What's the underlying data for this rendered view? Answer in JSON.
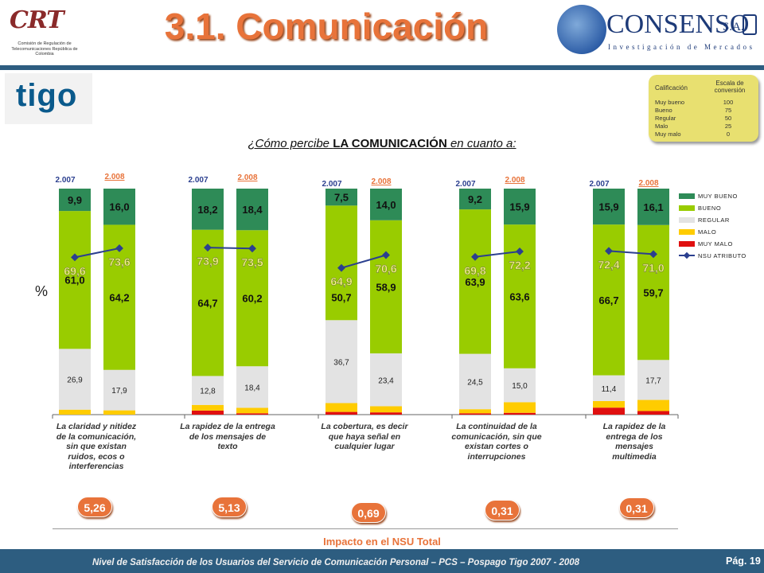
{
  "header": {
    "title": "3.1. Comunicación",
    "crt_logo": {
      "word": "CRT",
      "subtitle": "Comisión de Regulación de Telecomunicaciones República de Colombia"
    },
    "consenso_logo": {
      "word": "CONSENSO",
      "suffix": "S.A.",
      "subtitle": "Investigación de Mercados"
    },
    "brand_logo": "tigo"
  },
  "scale": {
    "col1": "Calificación",
    "col2": "Escala de conversión",
    "rows": [
      {
        "label": "Muy bueno",
        "value": "100"
      },
      {
        "label": "Bueno",
        "value": "75"
      },
      {
        "label": "Regular",
        "value": "50"
      },
      {
        "label": "Malo",
        "value": "25"
      },
      {
        "label": "Muy malo",
        "value": "0"
      }
    ]
  },
  "question": {
    "pre": "¿Cómo percibe ",
    "bold": "LA COMUNICACIÓN",
    "post": " en cuanto a:"
  },
  "y_unit": "%",
  "chart_data": {
    "type": "bar",
    "stacked": true,
    "ylim": [
      0,
      100
    ],
    "legend_position": "right",
    "series_names": [
      "MUY BUENO",
      "BUENO",
      "REGULAR",
      "MALO",
      "MUY MALO"
    ],
    "line_series_name": "NSU ATRIBUTO",
    "colors": {
      "muy_bueno": "#2e8b57",
      "bueno": "#99cc00",
      "regular": "#e3e3e3",
      "malo": "#ffcc00",
      "muy_malo": "#e01010",
      "nsu": "#2b3f8f"
    },
    "groups": [
      {
        "label": "La claridad y nitidez de la comunicación, sin que existan ruidos, ecos o interferencias",
        "impact": "5,26",
        "bars": [
          {
            "year": "2.007",
            "muy_bueno": 9.9,
            "bueno": 61.0,
            "regular": 26.9,
            "malo": 2.2,
            "muy_malo": 0.0,
            "nsu": 69.6,
            "labels": {
              "muy_bueno": "9,9",
              "bueno": "61,0",
              "regular": "26,9",
              "nsu": "69,6"
            }
          },
          {
            "year": "2.008",
            "muy_bueno": 16.0,
            "bueno": 64.2,
            "regular": 17.9,
            "malo": 1.9,
            "muy_malo": 0.0,
            "nsu": 73.6,
            "labels": {
              "muy_bueno": "16,0",
              "bueno": "64,2",
              "regular": "17,9",
              "nsu": "73,6"
            }
          }
        ]
      },
      {
        "label": "La rapidez de la entrega de los mensajes de texto",
        "impact": "5,13",
        "bars": [
          {
            "year": "2.007",
            "muy_bueno": 18.2,
            "bueno": 64.7,
            "regular": 12.8,
            "malo": 2.5,
            "muy_malo": 1.8,
            "nsu": 73.9,
            "labels": {
              "muy_bueno": "18,2",
              "bueno": "64,7",
              "regular": "12,8",
              "nsu": "73,9"
            }
          },
          {
            "year": "2.008",
            "muy_bueno": 18.4,
            "bueno": 60.2,
            "regular": 18.4,
            "malo": 2.4,
            "muy_malo": 0.6,
            "nsu": 73.5,
            "labels": {
              "muy_bueno": "18,4",
              "bueno": "60,2",
              "regular": "18,4",
              "nsu": "73,5"
            }
          }
        ]
      },
      {
        "label": "La cobertura, es decir que haya señal en cualquier lugar",
        "impact": "0,69",
        "bars": [
          {
            "year": "2.007",
            "muy_bueno": 7.5,
            "bueno": 50.7,
            "regular": 36.7,
            "malo": 3.9,
            "muy_malo": 1.2,
            "nsu": 64.9,
            "labels": {
              "muy_bueno": "7,5",
              "bueno": "50,7",
              "regular": "36,7",
              "nsu": "64,9"
            }
          },
          {
            "year": "2.008",
            "muy_bueno": 14.0,
            "bueno": 58.9,
            "regular": 23.4,
            "malo": 2.7,
            "muy_malo": 1.0,
            "nsu": 70.6,
            "labels": {
              "muy_bueno": "14,0",
              "bueno": "58,9",
              "regular": "23,4",
              "nsu": "70,6"
            }
          }
        ]
      },
      {
        "label": "La continuidad de la comunicación, sin que existan cortes o interrupciones",
        "impact": "0,31",
        "bars": [
          {
            "year": "2.007",
            "muy_bueno": 9.2,
            "bueno": 63.9,
            "regular": 24.5,
            "malo": 1.8,
            "muy_malo": 0.6,
            "nsu": 69.8,
            "labels": {
              "muy_bueno": "9,2",
              "bueno": "63,9",
              "regular": "24,5",
              "nsu": "69,8"
            }
          },
          {
            "year": "2.008",
            "muy_bueno": 15.9,
            "bueno": 63.6,
            "regular": 15.0,
            "malo": 4.7,
            "muy_malo": 0.8,
            "nsu": 72.2,
            "labels": {
              "muy_bueno": "15,9",
              "bueno": "63,6",
              "regular": "15,0",
              "nsu": "72,2"
            }
          }
        ]
      },
      {
        "label": "La rapidez de la entrega de los mensajes multimedia",
        "impact": "0,31",
        "bars": [
          {
            "year": "2.007",
            "muy_bueno": 15.9,
            "bueno": 66.7,
            "regular": 11.4,
            "malo": 2.9,
            "muy_malo": 3.1,
            "nsu": 72.4,
            "labels": {
              "muy_bueno": "15,9",
              "bueno": "66,7",
              "regular": "11,4",
              "nsu": "72,4"
            }
          },
          {
            "year": "2.008",
            "muy_bueno": 16.1,
            "bueno": 59.7,
            "regular": 17.7,
            "malo": 4.9,
            "muy_malo": 1.6,
            "nsu": 71.0,
            "labels": {
              "muy_bueno": "16,1",
              "bueno": "59,7",
              "regular": "17,7",
              "nsu": "71,0"
            }
          }
        ]
      }
    ]
  },
  "impact_title": "Impacto en el NSU Total",
  "footer": {
    "text": "Nivel de Satisfacción de los Usuarios del Servicio de Comunicación Personal – PCS – Pospago Tigo 2007 - 2008",
    "page": "Pág. 19"
  }
}
